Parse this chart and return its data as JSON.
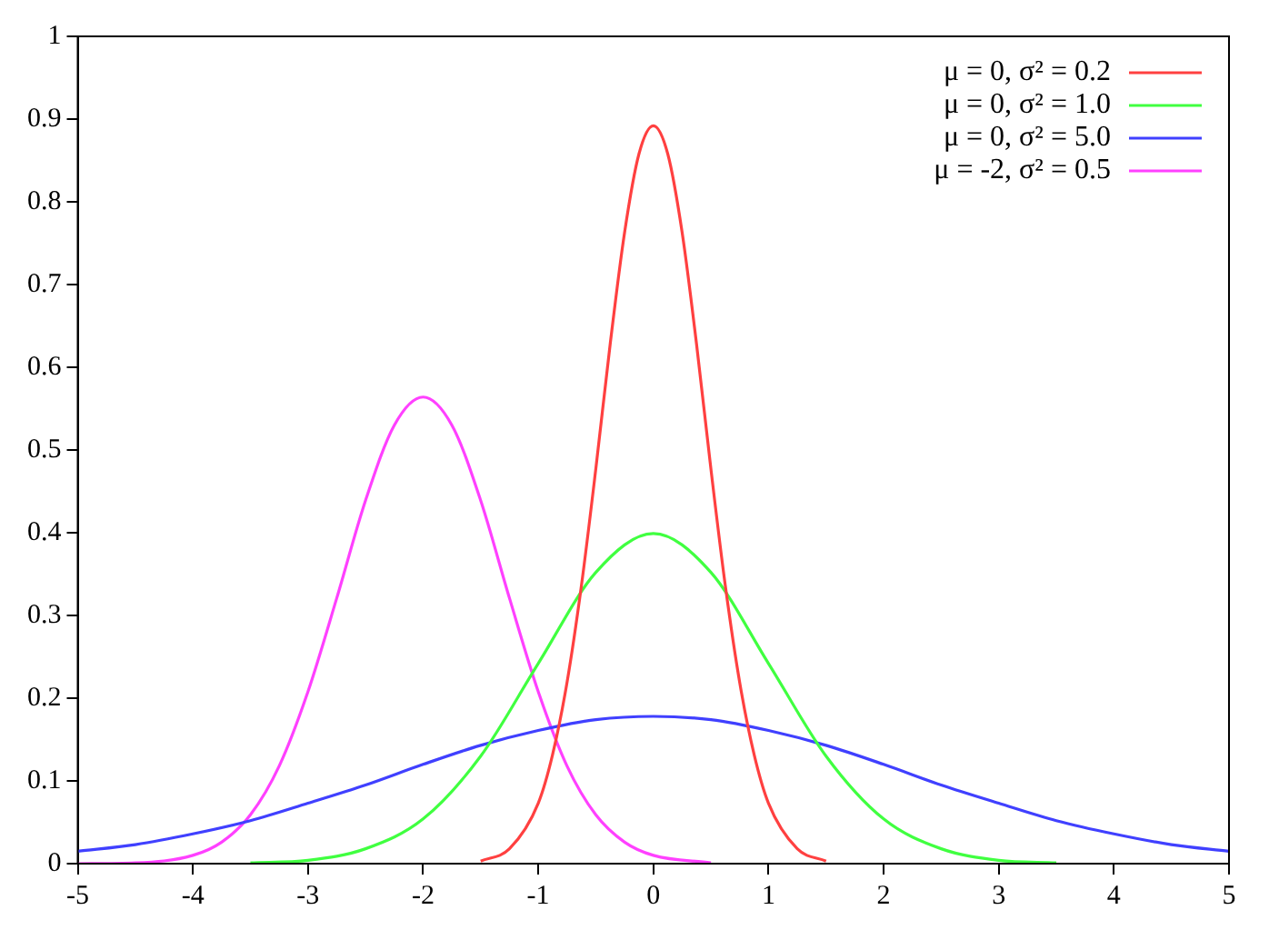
{
  "chart_data": {
    "type": "line",
    "xlim": [
      -5,
      5
    ],
    "xticks": [
      -5,
      -4,
      -3,
      -2,
      -1,
      0,
      1,
      2,
      3,
      4,
      5
    ],
    "ylim": [
      0,
      1
    ],
    "yticks": [
      0,
      0.1,
      0.2,
      0.3,
      0.4,
      0.5,
      0.6,
      0.7,
      0.8,
      0.9,
      1
    ],
    "grid": false,
    "legend": "top right",
    "marker": "none",
    "line_style": "solid",
    "series": [
      {
        "name": "μ = 0, σ² = 0.2",
        "color": "#ff4040",
        "x": [
          -1.5,
          -1.25,
          -1,
          -0.875,
          -0.75,
          -0.625,
          -0.5,
          -0.375,
          -0.25,
          -0.125,
          0,
          0.125,
          0.25,
          0.375,
          0.5,
          0.625,
          0.75,
          0.875,
          1,
          1.25,
          1.5
        ],
        "values": [
          0.003,
          0.018,
          0.073,
          0.132,
          0.219,
          0.336,
          0.477,
          0.628,
          0.763,
          0.858,
          0.892,
          0.858,
          0.763,
          0.628,
          0.477,
          0.336,
          0.219,
          0.132,
          0.073,
          0.018,
          0.003
        ]
      },
      {
        "name": "μ = 0, σ² = 1.0",
        "color": "#40ff40",
        "x": [
          -3.5,
          -3,
          -2.5,
          -2,
          -1.5,
          -1,
          -0.5,
          0,
          0.5,
          1,
          1.5,
          2,
          2.5,
          3,
          3.5
        ],
        "values": [
          0.001,
          0.004,
          0.018,
          0.054,
          0.13,
          0.242,
          0.352,
          0.399,
          0.352,
          0.242,
          0.13,
          0.054,
          0.018,
          0.004,
          0.001
        ]
      },
      {
        "name": "μ = 0, σ² = 5.0",
        "color": "#4040ff",
        "x": [
          -5,
          -4.5,
          -4,
          -3.5,
          -3,
          -2.5,
          -2,
          -1.5,
          -1,
          -0.5,
          0,
          0.5,
          1,
          1.5,
          2,
          2.5,
          3,
          3.5,
          4,
          4.5,
          5
        ],
        "values": [
          0.015,
          0.023,
          0.036,
          0.052,
          0.073,
          0.095,
          0.12,
          0.143,
          0.161,
          0.174,
          0.178,
          0.174,
          0.161,
          0.143,
          0.12,
          0.095,
          0.073,
          0.052,
          0.036,
          0.023,
          0.015
        ]
      },
      {
        "name": "μ = -2, σ² = 0.5",
        "color": "#ff40ff",
        "x": [
          -5,
          -4.5,
          -4,
          -3.75,
          -3.5,
          -3.25,
          -3,
          -2.75,
          -2.5,
          -2.25,
          -2,
          -1.75,
          -1.5,
          -1.25,
          -1,
          -0.75,
          -0.5,
          -0.25,
          0,
          0.5
        ],
        "values": [
          0,
          0.001,
          0.01,
          0.026,
          0.059,
          0.118,
          0.208,
          0.321,
          0.439,
          0.53,
          0.564,
          0.53,
          0.439,
          0.321,
          0.208,
          0.118,
          0.059,
          0.026,
          0.01,
          0.001
        ]
      }
    ]
  }
}
